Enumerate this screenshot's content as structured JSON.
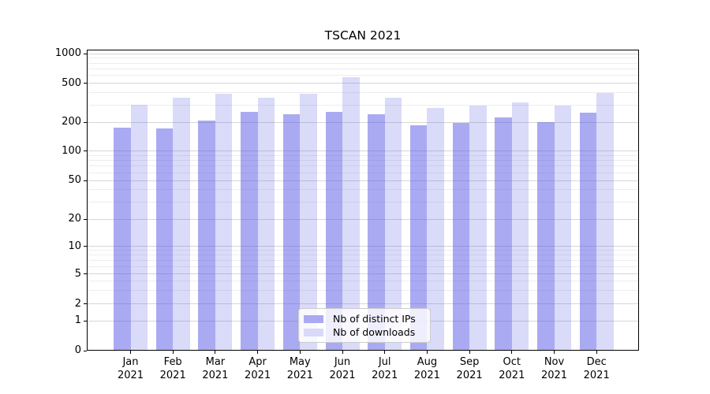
{
  "chart_data": {
    "type": "bar",
    "title": "TSCAN 2021",
    "categories": [
      "Jan\n2021",
      "Feb\n2021",
      "Mar\n2021",
      "Apr\n2021",
      "May\n2021",
      "Jun\n2021",
      "Jul\n2021",
      "Aug\n2021",
      "Sep\n2021",
      "Oct\n2021",
      "Nov\n2021",
      "Dec\n2021"
    ],
    "series": [
      {
        "name": "Nb of distinct IPs",
        "swatch_color": "#aaaaf2",
        "fill_rgba": "rgba(85,85,229,0.5)",
        "values": [
          176,
          173,
          208,
          255,
          242,
          254,
          240,
          184,
          198,
          222,
          201,
          248
        ]
      },
      {
        "name": "Nb of downloads",
        "swatch_color": "#d9d9f9",
        "fill_rgba": "rgba(85,85,229,0.22)",
        "values": [
          302,
          355,
          392,
          357,
          390,
          572,
          352,
          279,
          297,
          320,
          297,
          397
        ]
      }
    ],
    "yaxis": {
      "scale": "symlog",
      "range": [
        0,
        1000
      ],
      "tick_values": [
        0,
        1,
        2,
        5,
        10,
        20,
        50,
        100,
        200,
        500,
        1000
      ],
      "tick_labels": [
        "0",
        "1",
        "2",
        "5",
        "10",
        "20",
        "50",
        "100",
        "200",
        "500",
        "1000"
      ]
    },
    "xlabel": "",
    "ylabel": "",
    "grid": {
      "visible": true,
      "major_color": "#d6d6d6",
      "minor_color": "#ededed"
    },
    "legend": {
      "position": "lower center"
    }
  }
}
